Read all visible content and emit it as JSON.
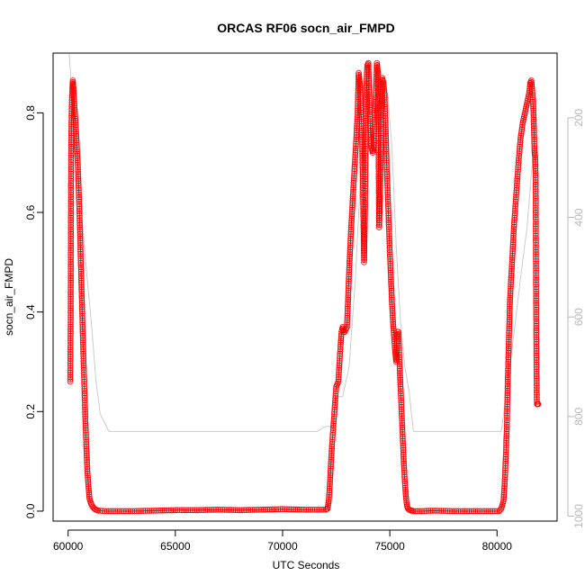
{
  "chart_data": {
    "type": "scatter",
    "title": "ORCAS RF06 socn_air_FMPD",
    "xlabel": "UTC Seconds",
    "ylabel": "socn_air_FMPD",
    "xlim": [
      59300,
      82800
    ],
    "ylim": [
      -0.02,
      0.92
    ],
    "x_ticks": [
      60000,
      65000,
      70000,
      75000,
      80000
    ],
    "y_ticks": [
      0.0,
      0.2,
      0.4,
      0.6,
      0.8
    ],
    "y_tick_labels": [
      "0.0",
      "0.2",
      "0.4",
      "0.6",
      "0.8"
    ],
    "y2_ticks": [
      200,
      400,
      600,
      800,
      1000
    ],
    "y2_lim": [
      1010,
      70
    ],
    "y2_reversed": true,
    "grid": false,
    "series": [
      {
        "color": "#ff0000",
        "marker": "open-circle",
        "x": [
          60100,
          60120,
          60140,
          60160,
          60180,
          60200,
          60220,
          60240,
          60260,
          60300,
          60350,
          60400,
          60450,
          60500,
          60550,
          60600,
          60650,
          60700,
          60750,
          60800,
          60850,
          60900,
          60950,
          61000,
          61050,
          61100,
          61150,
          61200,
          61250,
          61300,
          61350,
          61400,
          61500,
          61700,
          62000,
          63000,
          64000,
          65000,
          66000,
          67000,
          68000,
          69000,
          70000,
          71000,
          72000,
          72100,
          72150,
          72200,
          72250,
          72300,
          72400,
          72500,
          72600,
          72700,
          72750,
          72800,
          72850,
          72900,
          73000,
          73050,
          73100,
          73200,
          73300,
          73400,
          73500,
          73550,
          73600,
          73700,
          73750,
          73800,
          73850,
          73900,
          73950,
          74000,
          74050,
          74100,
          74150,
          74200,
          74250,
          74300,
          74350,
          74400,
          74450,
          74500,
          74550,
          74600,
          74650,
          74700,
          74750,
          74800,
          74850,
          74900,
          74950,
          75000,
          75050,
          75100,
          75150,
          75200,
          75250,
          75300,
          75350,
          75400,
          75450,
          75500,
          75550,
          75600,
          75650,
          75700,
          75750,
          75800,
          75850,
          75900,
          75950,
          76000,
          76050,
          76100,
          76200,
          76500,
          77000,
          78000,
          79000,
          80000,
          80100,
          80200,
          80300,
          80350,
          80400,
          80450,
          80500,
          80550,
          80600,
          80700,
          80800,
          80900,
          81000,
          81100,
          81200,
          81300,
          81400,
          81500,
          81550,
          81600,
          81650,
          81700,
          81750,
          81780,
          81800,
          81820,
          81840,
          81860,
          81880,
          81900,
          81920
        ],
        "y": [
          0.26,
          0.375,
          0.71,
          0.79,
          0.83,
          0.85,
          0.865,
          0.855,
          0.84,
          0.81,
          0.78,
          0.74,
          0.7,
          0.64,
          0.57,
          0.49,
          0.41,
          0.33,
          0.26,
          0.19,
          0.13,
          0.08,
          0.05,
          0.025,
          0.018,
          0.012,
          0.009,
          0.006,
          0.004,
          0.003,
          0.002,
          0.001,
          0.001,
          0.0,
          0.0,
          0.0,
          0.001,
          0.002,
          0.002,
          0.003,
          0.002,
          0.003,
          0.004,
          0.003,
          0.003,
          0.005,
          0.02,
          0.05,
          0.09,
          0.13,
          0.19,
          0.25,
          0.26,
          0.33,
          0.36,
          0.37,
          0.36,
          0.36,
          0.37,
          0.42,
          0.48,
          0.57,
          0.65,
          0.72,
          0.8,
          0.88,
          0.86,
          0.76,
          0.64,
          0.5,
          0.62,
          0.85,
          0.895,
          0.9,
          0.82,
          0.76,
          0.73,
          0.72,
          0.74,
          0.8,
          0.84,
          0.9,
          0.88,
          0.57,
          0.64,
          0.8,
          0.87,
          0.86,
          0.84,
          0.78,
          0.7,
          0.64,
          0.58,
          0.52,
          0.47,
          0.42,
          0.38,
          0.35,
          0.32,
          0.3,
          0.36,
          0.36,
          0.3,
          0.25,
          0.2,
          0.15,
          0.1,
          0.06,
          0.03,
          0.01,
          0.005,
          0.003,
          0.002,
          0.001,
          0.001,
          0.0,
          0.0,
          0.0,
          0.001,
          0.0,
          0.0,
          0.0,
          0.0,
          0.005,
          0.02,
          0.05,
          0.1,
          0.16,
          0.26,
          0.34,
          0.42,
          0.5,
          0.58,
          0.64,
          0.7,
          0.75,
          0.78,
          0.8,
          0.82,
          0.84,
          0.86,
          0.865,
          0.84,
          0.8,
          0.72,
          0.71,
          0.67,
          0.455,
          0.285,
          0.215,
          0.215,
          0.215,
          0.215
        ]
      },
      {
        "color": "#cccccc",
        "axis": "y2",
        "line": true,
        "x": [
          60050,
          60250,
          60500,
          60800,
          61100,
          61300,
          61500,
          61900,
          63000,
          65000,
          67000,
          69000,
          71000,
          71600,
          72000,
          72300,
          72500,
          72800,
          73100,
          73400,
          73700,
          73900,
          74100,
          74300,
          74500,
          74700,
          74900,
          75100,
          75300,
          75500,
          75700,
          75900,
          76100,
          76400,
          77000,
          78000,
          79000,
          80000,
          80200,
          80500,
          80800,
          81100,
          81400,
          81700,
          81850
        ],
        "y": [
          70,
          200,
          330,
          480,
          620,
          730,
          795,
          830,
          830,
          830,
          830,
          830,
          830,
          830,
          820,
          820,
          760,
          760,
          700,
          520,
          260,
          120,
          120,
          200,
          230,
          180,
          150,
          260,
          460,
          610,
          700,
          750,
          830,
          830,
          830,
          830,
          830,
          830,
          830,
          730,
          630,
          520,
          420,
          260,
          160
        ]
      }
    ]
  }
}
